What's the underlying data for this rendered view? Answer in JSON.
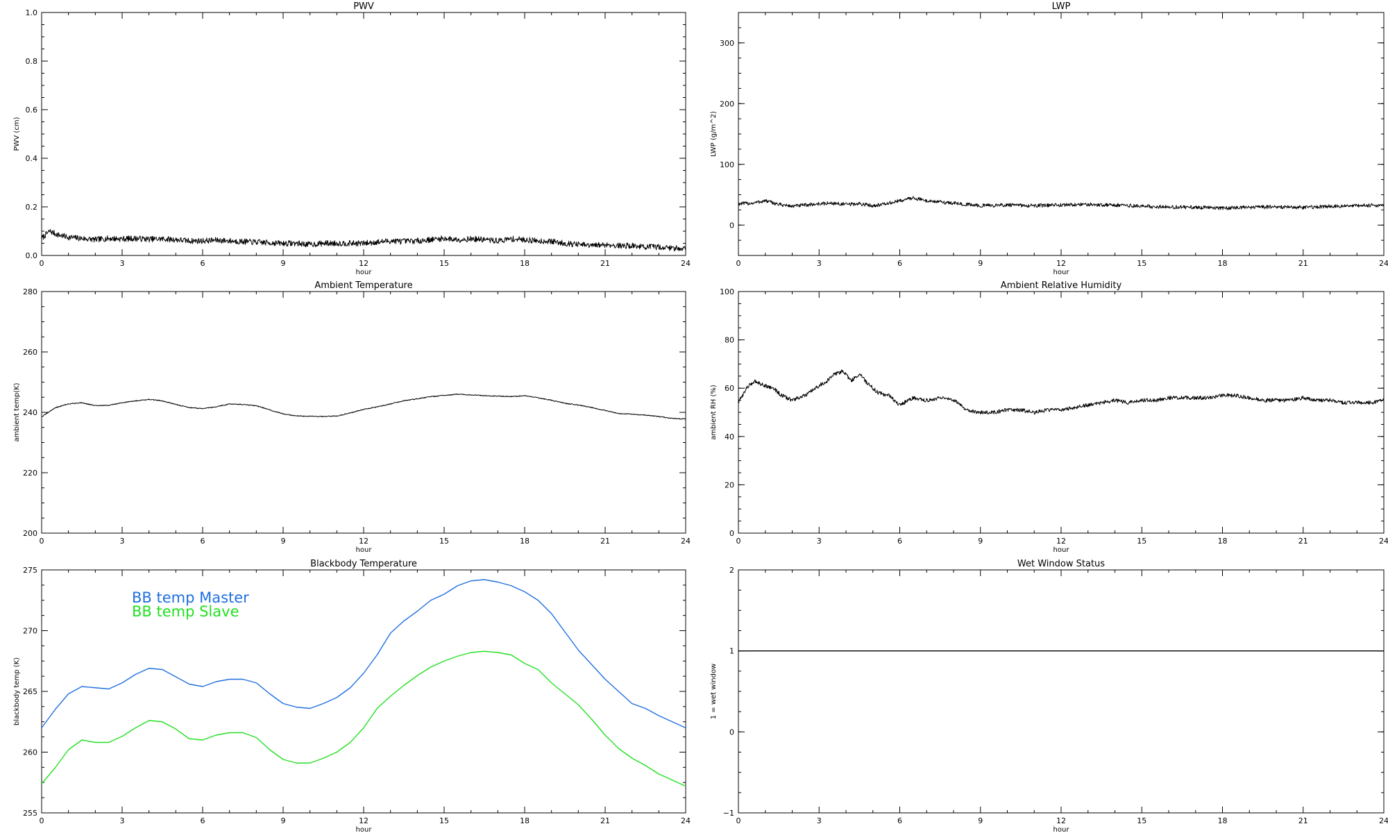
{
  "chart_data": [
    {
      "id": "pwv",
      "type": "line",
      "title": "PWV",
      "xlabel": "hour",
      "ylabel": "PWV (cm)",
      "xlim": [
        0,
        24
      ],
      "ylim": [
        0,
        1.0
      ],
      "xticks": [
        "0",
        "3",
        "6",
        "9",
        "12",
        "15",
        "18",
        "21",
        "24"
      ],
      "yticks": [
        "0.0",
        "0.2",
        "0.4",
        "0.6",
        "0.8",
        "1.0"
      ],
      "ytick_values": [
        0,
        0.2,
        0.4,
        0.6,
        0.8,
        1.0
      ],
      "noise": 0.012,
      "series": [
        {
          "color": "#000000",
          "x": [
            0,
            0.3,
            0.6,
            1,
            1.5,
            2,
            2.5,
            3,
            3.5,
            4,
            4.5,
            5,
            5.5,
            6,
            6.5,
            7,
            7.5,
            8,
            8.5,
            9,
            9.5,
            10,
            10.5,
            11,
            11.5,
            12,
            12.5,
            13,
            13.5,
            14,
            14.5,
            15,
            15.5,
            16,
            16.5,
            17,
            17.5,
            18,
            18.5,
            19,
            19.5,
            20,
            20.5,
            21,
            21.5,
            22,
            22.5,
            23,
            23.5,
            24
          ],
          "y": [
            0.07,
            0.1,
            0.085,
            0.075,
            0.07,
            0.065,
            0.07,
            0.068,
            0.07,
            0.067,
            0.068,
            0.065,
            0.06,
            0.06,
            0.063,
            0.06,
            0.057,
            0.055,
            0.052,
            0.05,
            0.05,
            0.045,
            0.05,
            0.05,
            0.05,
            0.05,
            0.055,
            0.06,
            0.058,
            0.06,
            0.065,
            0.07,
            0.065,
            0.068,
            0.065,
            0.06,
            0.068,
            0.065,
            0.06,
            0.058,
            0.05,
            0.045,
            0.04,
            0.045,
            0.04,
            0.04,
            0.035,
            0.035,
            0.03,
            0.03
          ]
        }
      ]
    },
    {
      "id": "lwp",
      "type": "line",
      "title": "LWP",
      "xlabel": "hour",
      "ylabel": "LWP (g/m^2)",
      "xlim": [
        0,
        24
      ],
      "ylim": [
        -50,
        350
      ],
      "xticks": [
        "0",
        "3",
        "6",
        "9",
        "12",
        "15",
        "18",
        "21",
        "24"
      ],
      "yticks": [
        "0",
        "100",
        "200",
        "300"
      ],
      "ytick_values": [
        0,
        100,
        200,
        300
      ],
      "noise": 3,
      "series": [
        {
          "color": "#000000",
          "x": [
            0,
            0.5,
            1,
            1.5,
            2,
            2.5,
            3,
            3.5,
            4,
            4.5,
            5,
            5.5,
            6,
            6.5,
            7,
            7.5,
            8,
            8.5,
            9,
            10,
            11,
            12,
            13,
            14,
            15,
            16,
            17,
            18,
            19,
            20,
            21,
            22,
            23,
            24
          ],
          "y": [
            35,
            36,
            40,
            34,
            31,
            33,
            35,
            36,
            34,
            35,
            32,
            35,
            40,
            45,
            40,
            38,
            36,
            34,
            32,
            33,
            32,
            33,
            34,
            33,
            31,
            30,
            29,
            28,
            29,
            30,
            29,
            31,
            32,
            33
          ]
        }
      ]
    },
    {
      "id": "ambient-temp",
      "type": "line",
      "title": "Ambient Temperature",
      "xlabel": "hour",
      "ylabel": "ambient temp(K)",
      "xlim": [
        0,
        24
      ],
      "ylim": [
        200,
        280
      ],
      "xticks": [
        "0",
        "3",
        "6",
        "9",
        "12",
        "15",
        "18",
        "21",
        "24"
      ],
      "yticks": [
        "200",
        "220",
        "240",
        "260",
        "280"
      ],
      "ytick_values": [
        200,
        220,
        240,
        260,
        280
      ],
      "noise": 0.15,
      "series": [
        {
          "color": "#000000",
          "x": [
            0,
            0.5,
            1,
            1.5,
            2,
            2.5,
            3,
            3.5,
            4,
            4.5,
            5,
            5.5,
            6,
            6.5,
            7,
            7.5,
            8,
            8.5,
            9,
            9.5,
            10,
            10.5,
            11,
            11.5,
            12,
            12.5,
            13,
            13.5,
            14,
            14.5,
            15,
            15.5,
            16,
            16.5,
            17,
            17.5,
            18,
            18.5,
            19,
            19.5,
            20,
            20.5,
            21,
            21.5,
            22,
            22.5,
            23,
            23.5,
            24
          ],
          "y": [
            238.5,
            241.5,
            242.8,
            243.2,
            242.2,
            242.3,
            243.2,
            243.8,
            244.3,
            243.8,
            242.6,
            241.6,
            241.2,
            241.8,
            242.8,
            242.6,
            242.2,
            240.8,
            239.5,
            238.8,
            238.7,
            238.6,
            238.8,
            239.8,
            241.0,
            241.8,
            242.8,
            243.8,
            244.5,
            245.2,
            245.6,
            246.0,
            245.8,
            245.5,
            245.4,
            245.2,
            245.5,
            244.8,
            244.0,
            243.0,
            242.4,
            241.6,
            240.6,
            239.6,
            239.4,
            239.1,
            238.6,
            238.0,
            237.8
          ]
        }
      ]
    },
    {
      "id": "ambient-rh",
      "type": "line",
      "title": "Ambient Relative Humidity",
      "xlabel": "hour",
      "ylabel": "ambient RH (%)",
      "xlim": [
        0,
        24
      ],
      "ylim": [
        0,
        100
      ],
      "xticks": [
        "0",
        "3",
        "6",
        "9",
        "12",
        "15",
        "18",
        "21",
        "24"
      ],
      "yticks": [
        "0",
        "20",
        "40",
        "60",
        "80",
        "100"
      ],
      "ytick_values": [
        0,
        20,
        40,
        60,
        80,
        100
      ],
      "noise": 0.8,
      "series": [
        {
          "color": "#000000",
          "x": [
            0,
            0.3,
            0.6,
            1,
            1.3,
            1.6,
            2,
            2.5,
            3,
            3.3,
            3.6,
            3.9,
            4.2,
            4.5,
            4.8,
            5.2,
            5.6,
            6,
            6.5,
            7,
            7.5,
            8,
            8.5,
            9,
            9.5,
            10,
            10.5,
            11,
            11.5,
            12,
            12.5,
            13,
            13.5,
            14,
            14.5,
            15,
            15.5,
            16,
            16.5,
            17,
            17.5,
            18,
            18.5,
            19,
            19.5,
            20,
            20.5,
            21,
            21.5,
            22,
            22.5,
            23,
            23.5,
            24
          ],
          "y": [
            54,
            60,
            63,
            61,
            60,
            57,
            55,
            57,
            61,
            63,
            66,
            67,
            63,
            66,
            62,
            58,
            57,
            53,
            56,
            55,
            56,
            55,
            51,
            50,
            50,
            51,
            51,
            50,
            51,
            51,
            52,
            53,
            54,
            55,
            54,
            55,
            55,
            56,
            56,
            56,
            56,
            57,
            57,
            56,
            55,
            55,
            55,
            56,
            55,
            55,
            54,
            54,
            54,
            55
          ]
        }
      ]
    },
    {
      "id": "bb-temp",
      "type": "line",
      "title": "Blackbody Temperature",
      "xlabel": "hour",
      "ylabel": "blackbody temp (K)",
      "xlim": [
        0,
        24
      ],
      "ylim": [
        255,
        275
      ],
      "xticks": [
        "0",
        "3",
        "6",
        "9",
        "12",
        "15",
        "18",
        "21",
        "24"
      ],
      "yticks": [
        "255",
        "260",
        "265",
        "270",
        "275"
      ],
      "ytick_values": [
        255,
        260,
        265,
        270,
        275
      ],
      "noise": 0,
      "series": [
        {
          "name": "BB temp Master",
          "color": "#1f6fe0",
          "x": [
            0,
            0.5,
            1,
            1.5,
            2,
            2.5,
            3,
            3.5,
            4,
            4.5,
            5,
            5.5,
            6,
            6.5,
            7,
            7.5,
            8,
            8.5,
            9,
            9.5,
            10,
            10.5,
            11,
            11.5,
            12,
            12.5,
            13,
            13.5,
            14,
            14.5,
            15,
            15.5,
            16,
            16.5,
            17,
            17.5,
            18,
            18.5,
            19,
            19.5,
            20,
            20.5,
            21,
            21.5,
            22,
            22.5,
            23,
            23.5,
            24
          ],
          "y": [
            262.0,
            263.5,
            264.8,
            265.4,
            265.3,
            265.2,
            265.7,
            266.4,
            266.9,
            266.8,
            266.2,
            265.6,
            265.4,
            265.8,
            266.0,
            266.0,
            265.7,
            264.8,
            264.0,
            263.7,
            263.6,
            264.0,
            264.5,
            265.3,
            266.5,
            268.0,
            269.8,
            270.8,
            271.6,
            272.5,
            273.0,
            273.7,
            274.1,
            274.2,
            274.0,
            273.7,
            273.2,
            272.5,
            271.4,
            269.9,
            268.4,
            267.2,
            266.0,
            265.0,
            264.0,
            263.6,
            263.0,
            262.5,
            262.0
          ]
        },
        {
          "name": "BB temp Slave",
          "color": "#22e022",
          "x": [
            0,
            0.5,
            1,
            1.5,
            2,
            2.5,
            3,
            3.5,
            4,
            4.5,
            5,
            5.5,
            6,
            6.5,
            7,
            7.5,
            8,
            8.5,
            9,
            9.5,
            10,
            10.5,
            11,
            11.5,
            12,
            12.5,
            13,
            13.5,
            14,
            14.5,
            15,
            15.5,
            16,
            16.5,
            17,
            17.5,
            18,
            18.5,
            19,
            19.5,
            20,
            20.5,
            21,
            21.5,
            22,
            22.5,
            23,
            23.5,
            24
          ],
          "y": [
            257.4,
            258.7,
            260.2,
            261.0,
            260.8,
            260.8,
            261.3,
            262.0,
            262.6,
            262.5,
            261.9,
            261.1,
            261.0,
            261.4,
            261.6,
            261.6,
            261.2,
            260.2,
            259.4,
            259.1,
            259.1,
            259.5,
            260.0,
            260.8,
            262.0,
            263.6,
            264.6,
            265.5,
            266.3,
            267.0,
            267.5,
            267.9,
            268.2,
            268.3,
            268.2,
            268.0,
            267.3,
            266.8,
            265.7,
            264.8,
            263.9,
            262.7,
            261.4,
            260.3,
            259.5,
            258.9,
            258.2,
            257.7,
            257.2
          ]
        }
      ]
    },
    {
      "id": "wet-window",
      "type": "line",
      "title": "Wet Window Status",
      "xlabel": "hour",
      "ylabel": "1 = wet window",
      "xlim": [
        0,
        24
      ],
      "ylim": [
        -1,
        2
      ],
      "xticks": [
        "0",
        "3",
        "6",
        "9",
        "12",
        "15",
        "18",
        "21",
        "24"
      ],
      "yticks": [
        "−1",
        "0",
        "1",
        "2"
      ],
      "ytick_values": [
        -1,
        0,
        1,
        2
      ],
      "noise": 0,
      "series": [
        {
          "color": "#000000",
          "x": [
            0,
            24
          ],
          "y": [
            1,
            1
          ]
        }
      ]
    }
  ]
}
